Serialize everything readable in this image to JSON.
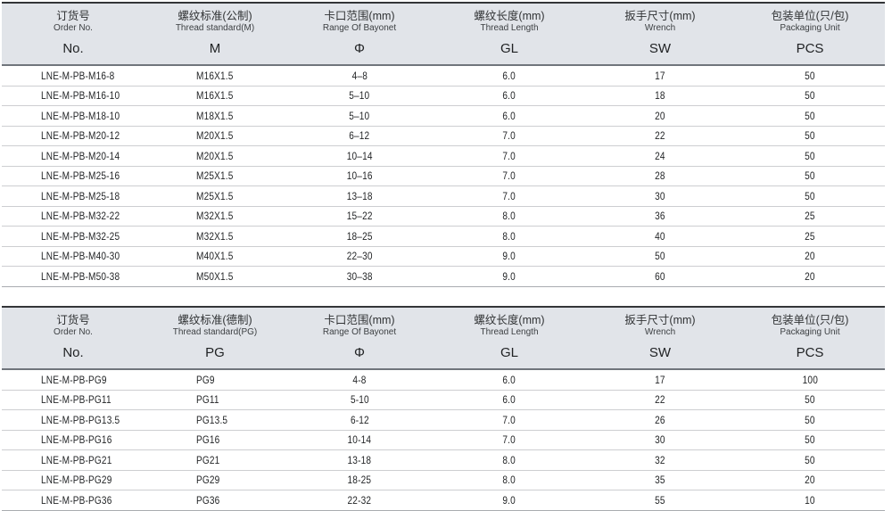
{
  "colors": {
    "header_background": "#e1e4e9",
    "table_top_border": "#333538",
    "header_bottom_border": "#70757c",
    "row_separator": "#cdced1",
    "table_bottom_border": "#a9acb0",
    "text": "#232527"
  },
  "tables": [
    {
      "name": "metric-thread-spec",
      "columns": [
        {
          "zh": "订货号",
          "en": "Order No.",
          "symbol": "No."
        },
        {
          "zh": "螺纹标准(公制)",
          "en": "Thread standard(M)",
          "symbol": "M"
        },
        {
          "zh": "卡口范围(mm)",
          "en": "Range Of Bayonet",
          "symbol": "Φ"
        },
        {
          "zh": "螺纹长度(mm)",
          "en": "Thread Length",
          "symbol": "GL"
        },
        {
          "zh": "扳手尺寸(mm)",
          "en": "Wrench",
          "symbol": "SW"
        },
        {
          "zh": "包装单位(只/包)",
          "en": "Packaging Unit",
          "symbol": "PCS"
        }
      ],
      "rows": [
        [
          "LNE-M-PB-M16-8",
          "M16X1.5",
          "4–8",
          "6.0",
          "17",
          "50"
        ],
        [
          "LNE-M-PB-M16-10",
          "M16X1.5",
          "5–10",
          "6.0",
          "18",
          "50"
        ],
        [
          "LNE-M-PB-M18-10",
          "M18X1.5",
          "5–10",
          "6.0",
          "20",
          "50"
        ],
        [
          "LNE-M-PB-M20-12",
          "M20X1.5",
          "6–12",
          "7.0",
          "22",
          "50"
        ],
        [
          "LNE-M-PB-M20-14",
          "M20X1.5",
          "10–14",
          "7.0",
          "24",
          "50"
        ],
        [
          "LNE-M-PB-M25-16",
          "M25X1.5",
          "10–16",
          "7.0",
          "28",
          "50"
        ],
        [
          "LNE-M-PB-M25-18",
          "M25X1.5",
          "13–18",
          "7.0",
          "30",
          "50"
        ],
        [
          "LNE-M-PB-M32-22",
          "M32X1.5",
          "15–22",
          "8.0",
          "36",
          "25"
        ],
        [
          "LNE-M-PB-M32-25",
          "M32X1.5",
          "18–25",
          "8.0",
          "40",
          "25"
        ],
        [
          "LNE-M-PB-M40-30",
          "M40X1.5",
          "22–30",
          "9.0",
          "50",
          "20"
        ],
        [
          "LNE-M-PB-M50-38",
          "M50X1.5",
          "30–38",
          "9.0",
          "60",
          "20"
        ]
      ]
    },
    {
      "name": "pg-thread-spec",
      "columns": [
        {
          "zh": "订货号",
          "en": "Order No.",
          "symbol": "No."
        },
        {
          "zh": "螺纹标准(德制)",
          "en": "Thread standard(PG)",
          "symbol": "PG"
        },
        {
          "zh": "卡口范围(mm)",
          "en": "Range Of Bayonet",
          "symbol": "Φ"
        },
        {
          "zh": "螺纹长度(mm)",
          "en": "Thread Length",
          "symbol": "GL"
        },
        {
          "zh": "扳手尺寸(mm)",
          "en": "Wrench",
          "symbol": "SW"
        },
        {
          "zh": "包装单位(只/包)",
          "en": "Packaging Unit",
          "symbol": "PCS"
        }
      ],
      "rows": [
        [
          "LNE-M-PB-PG9",
          "PG9",
          "4-8",
          "6.0",
          "17",
          "100"
        ],
        [
          "LNE-M-PB-PG11",
          "PG11",
          "5-10",
          "6.0",
          "22",
          "50"
        ],
        [
          "LNE-M-PB-PG13.5",
          "PG13.5",
          "6-12",
          "7.0",
          "26",
          "50"
        ],
        [
          "LNE-M-PB-PG16",
          "PG16",
          "10-14",
          "7.0",
          "30",
          "50"
        ],
        [
          "LNE-M-PB-PG21",
          "PG21",
          "13-18",
          "8.0",
          "32",
          "50"
        ],
        [
          "LNE-M-PB-PG29",
          "PG29",
          "18-25",
          "8.0",
          "35",
          "20"
        ],
        [
          "LNE-M-PB-PG36",
          "PG36",
          "22-32",
          "9.0",
          "55",
          "10"
        ]
      ]
    }
  ]
}
